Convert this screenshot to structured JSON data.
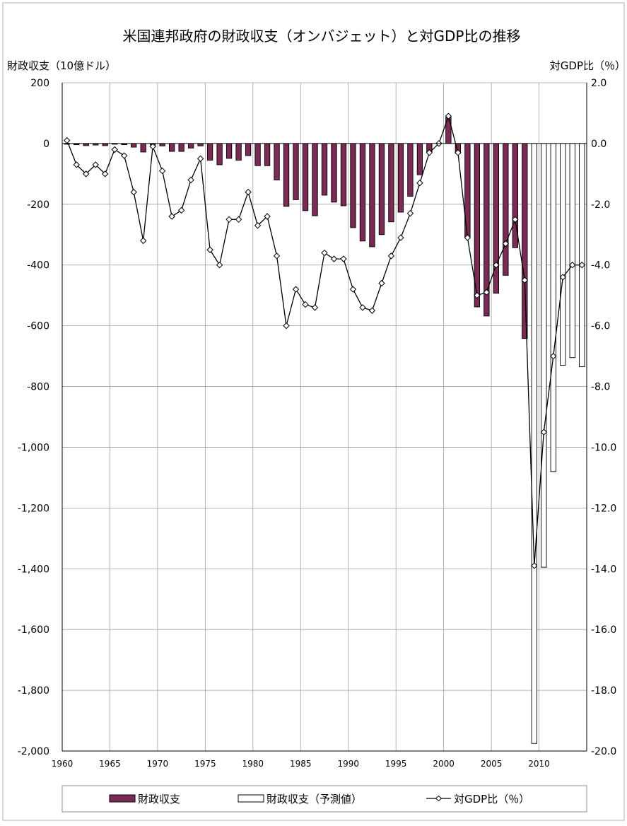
{
  "chart_data": {
    "type": "bar",
    "title": "米国連邦政府の財政収支（オンバジェット）と対GDP比の推移",
    "left_axis_label": "財政収支（10億ドル）",
    "right_axis_label": "対GDP比（％）",
    "left_ylim": [
      -2000,
      200
    ],
    "right_ylim": [
      -20.0,
      2.0
    ],
    "left_ticks": [
      "200",
      "0",
      "-200",
      "-400",
      "-600",
      "-800",
      "-1,000",
      "-1,200",
      "-1,400",
      "-1,600",
      "-1,800",
      "-2,000"
    ],
    "right_ticks": [
      "2.0",
      "0.0",
      "-2.0",
      "-4.0",
      "-6.0",
      "-8.0",
      "-10.0",
      "-12.0",
      "-14.0",
      "-16.0",
      "-18.0",
      "-20.0"
    ],
    "x_ticks": [
      "1960",
      "1965",
      "1970",
      "1975",
      "1980",
      "1985",
      "1990",
      "1995",
      "2000",
      "2005",
      "2010"
    ],
    "grid": true,
    "legend_position": "bottom",
    "colors": {
      "actual_bar": "#7B2A55",
      "forecast_bar": "#ffffff",
      "line": "#000000",
      "grid": "#a0a0a0"
    },
    "series": [
      {
        "name": "財政収支",
        "kind": "bar",
        "x": [
          1960,
          1961,
          1962,
          1963,
          1964,
          1965,
          1966,
          1967,
          1968,
          1969,
          1970,
          1971,
          1972,
          1973,
          1974,
          1975,
          1976,
          1977,
          1978,
          1979,
          1980,
          1981,
          1982,
          1983,
          1984,
          1985,
          1986,
          1987,
          1988,
          1989,
          1990,
          1991,
          1992,
          1993,
          1994,
          1995,
          1996,
          1997,
          1998,
          1999,
          2000,
          2001,
          2002,
          2003,
          2004,
          2005,
          2006,
          2007,
          2008
        ],
        "values": [
          0,
          -4,
          -7,
          -5,
          -7,
          -2,
          -4,
          -12,
          -28,
          -5,
          -8,
          -26,
          -26,
          -15,
          -8,
          -55,
          -70,
          -49,
          -55,
          -40,
          -73,
          -73,
          -120,
          -207,
          -185,
          -221,
          -238,
          -170,
          -193,
          -205,
          -277,
          -321,
          -340,
          -300,
          -258,
          -226,
          -174,
          -103,
          -30,
          2,
          86,
          -33,
          -310,
          -538,
          -568,
          -493,
          -434,
          -343,
          -642
        ]
      },
      {
        "name": "財政収支（予測値）",
        "kind": "bar",
        "x": [
          2009,
          2010,
          2011,
          2012,
          2013,
          2014
        ],
        "values": [
          -1975,
          -1395,
          -1080,
          -730,
          -705,
          -735
        ]
      },
      {
        "name": "対GDP比（％）",
        "kind": "line",
        "axis": "right",
        "x": [
          1960,
          1961,
          1962,
          1963,
          1964,
          1965,
          1966,
          1967,
          1968,
          1969,
          1970,
          1971,
          1972,
          1973,
          1974,
          1975,
          1976,
          1977,
          1978,
          1979,
          1980,
          1981,
          1982,
          1983,
          1984,
          1985,
          1986,
          1987,
          1988,
          1989,
          1990,
          1991,
          1992,
          1993,
          1994,
          1995,
          1996,
          1997,
          1998,
          1999,
          2000,
          2001,
          2002,
          2003,
          2004,
          2005,
          2006,
          2007,
          2008,
          2009,
          2010,
          2011,
          2012,
          2013,
          2014
        ],
        "values": [
          0.1,
          -0.7,
          -1.0,
          -0.7,
          -1.0,
          -0.2,
          -0.4,
          -1.6,
          -3.2,
          -0.1,
          -0.9,
          -2.4,
          -2.2,
          -1.2,
          -0.5,
          -3.5,
          -4.0,
          -2.5,
          -2.5,
          -1.6,
          -2.7,
          -2.4,
          -3.7,
          -6.0,
          -4.8,
          -5.3,
          -5.4,
          -3.6,
          -3.8,
          -3.8,
          -4.8,
          -5.4,
          -5.5,
          -4.6,
          -3.7,
          -3.1,
          -2.3,
          -1.3,
          -0.3,
          0.0,
          0.9,
          -0.3,
          -3.1,
          -5.0,
          -4.9,
          -4.0,
          -3.3,
          -2.5,
          -4.5,
          -13.9,
          -9.5,
          -7.0,
          -4.4,
          -4.0,
          -4.0
        ]
      }
    ]
  },
  "legend": {
    "items": [
      {
        "label": "財政収支"
      },
      {
        "label": "財政収支（予測値）"
      },
      {
        "label": "対GDP比（％）"
      }
    ]
  }
}
